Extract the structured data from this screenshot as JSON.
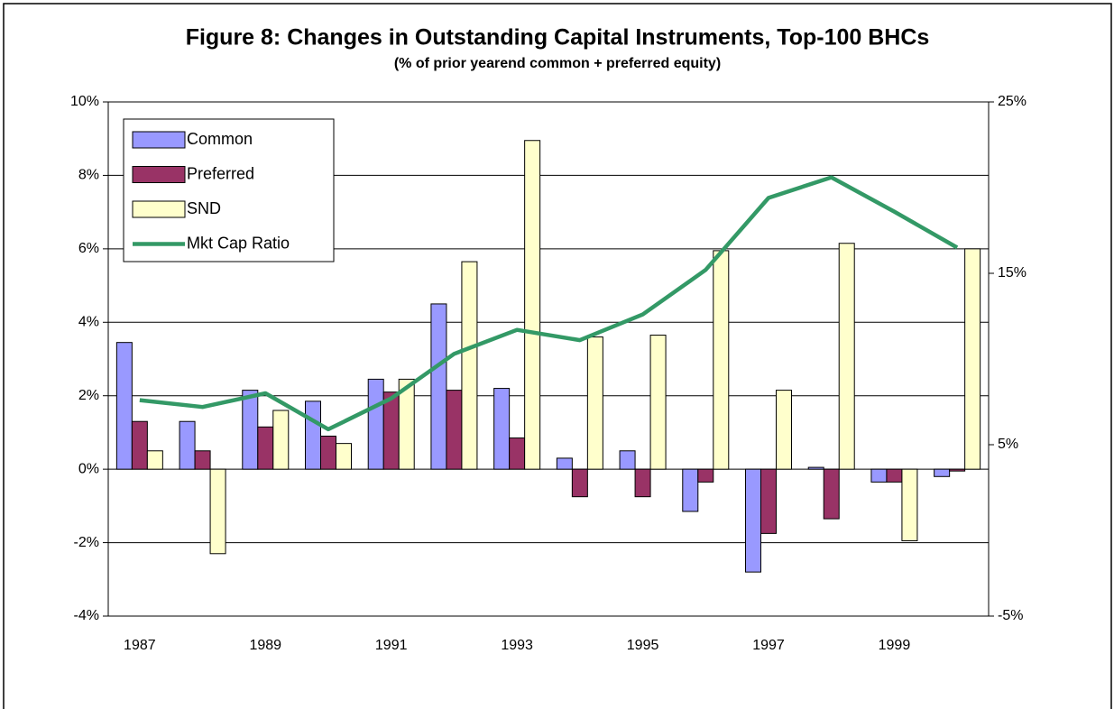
{
  "chart_data": {
    "type": "bar",
    "title": "Figure 8:  Changes in Outstanding Capital Instruments, Top-100 BHCs",
    "subtitle": "(% of prior yearend common + preferred equity)",
    "categories": [
      "1987",
      null,
      "1989",
      null,
      "1991",
      null,
      "1993",
      null,
      "1995",
      null,
      "1997",
      null,
      "1999",
      null
    ],
    "series": [
      {
        "name": "Common",
        "type": "bar",
        "color": "#9999ff",
        "values": [
          3.45,
          1.3,
          2.15,
          1.85,
          2.45,
          4.5,
          2.2,
          0.3,
          0.5,
          -1.15,
          -2.8,
          0.05,
          -0.35,
          -0.2
        ]
      },
      {
        "name": "Preferred",
        "type": "bar",
        "color": "#993366",
        "values": [
          1.3,
          0.5,
          1.15,
          0.9,
          2.1,
          2.15,
          0.85,
          -0.75,
          -0.75,
          -0.35,
          -1.75,
          -1.35,
          -0.35,
          -0.05
        ]
      },
      {
        "name": "SND",
        "type": "bar",
        "color": "#ffffcc",
        "values": [
          0.5,
          -2.3,
          1.6,
          0.7,
          2.45,
          5.65,
          8.95,
          3.6,
          3.65,
          5.95,
          2.15,
          6.15,
          -1.95,
          6.0
        ]
      },
      {
        "name": "Mkt Cap Ratio",
        "type": "line",
        "axis": "y2",
        "color": "#339966",
        "values": [
          7.6,
          7.2,
          8.0,
          5.9,
          7.7,
          10.3,
          11.7,
          11.1,
          12.6,
          15.2,
          19.4,
          20.6,
          18.6,
          16.5
        ]
      }
    ],
    "ylim": [
      -4,
      10
    ],
    "yticks": [
      {
        "value": -4,
        "label": "-4%"
      },
      {
        "value": -2,
        "label": "-2%"
      },
      {
        "value": 0,
        "label": "0%"
      },
      {
        "value": 2,
        "label": "2%"
      },
      {
        "value": 4,
        "label": "4%"
      },
      {
        "value": 6,
        "label": "6%"
      },
      {
        "value": 8,
        "label": "8%"
      },
      {
        "value": 10,
        "label": "10%"
      }
    ],
    "y2lim": [
      -5,
      25
    ],
    "y2ticks": [
      {
        "value": -5,
        "label": "-5%"
      },
      {
        "value": 5,
        "label": "5%"
      },
      {
        "value": 15,
        "label": "15%"
      },
      {
        "value": 25,
        "label": "25%"
      }
    ],
    "grid": true,
    "legend": "upper left"
  }
}
